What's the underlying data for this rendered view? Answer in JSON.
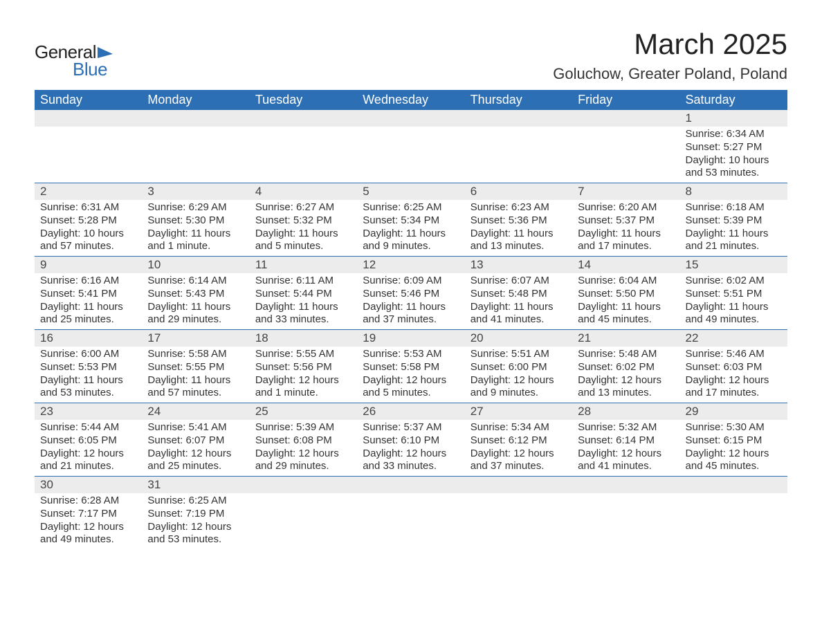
{
  "logo": {
    "text_general": "General",
    "text_blue": "Blue",
    "flag_color": "#2c6fb5"
  },
  "title": "March 2025",
  "subtitle": "Goluchow, Greater Poland, Poland",
  "colors": {
    "header_bg": "#2c6fb5",
    "header_text": "#ffffff",
    "daynum_bg": "#ececec",
    "row_border": "#2c6fb5",
    "text": "#333333",
    "background": "#ffffff"
  },
  "fonts": {
    "title_size": 42,
    "subtitle_size": 22,
    "header_size": 18,
    "daynum_size": 17,
    "body_size": 15
  },
  "layout": {
    "columns": 7,
    "rows": 6
  },
  "day_headers": [
    "Sunday",
    "Monday",
    "Tuesday",
    "Wednesday",
    "Thursday",
    "Friday",
    "Saturday"
  ],
  "labels": {
    "sunrise": "Sunrise:",
    "sunset": "Sunset:",
    "daylight": "Daylight:"
  },
  "weeks": [
    [
      null,
      null,
      null,
      null,
      null,
      null,
      {
        "day": "1",
        "sunrise": "6:34 AM",
        "sunset": "5:27 PM",
        "daylight": "10 hours and 53 minutes."
      }
    ],
    [
      {
        "day": "2",
        "sunrise": "6:31 AM",
        "sunset": "5:28 PM",
        "daylight": "10 hours and 57 minutes."
      },
      {
        "day": "3",
        "sunrise": "6:29 AM",
        "sunset": "5:30 PM",
        "daylight": "11 hours and 1 minute."
      },
      {
        "day": "4",
        "sunrise": "6:27 AM",
        "sunset": "5:32 PM",
        "daylight": "11 hours and 5 minutes."
      },
      {
        "day": "5",
        "sunrise": "6:25 AM",
        "sunset": "5:34 PM",
        "daylight": "11 hours and 9 minutes."
      },
      {
        "day": "6",
        "sunrise": "6:23 AM",
        "sunset": "5:36 PM",
        "daylight": "11 hours and 13 minutes."
      },
      {
        "day": "7",
        "sunrise": "6:20 AM",
        "sunset": "5:37 PM",
        "daylight": "11 hours and 17 minutes."
      },
      {
        "day": "8",
        "sunrise": "6:18 AM",
        "sunset": "5:39 PM",
        "daylight": "11 hours and 21 minutes."
      }
    ],
    [
      {
        "day": "9",
        "sunrise": "6:16 AM",
        "sunset": "5:41 PM",
        "daylight": "11 hours and 25 minutes."
      },
      {
        "day": "10",
        "sunrise": "6:14 AM",
        "sunset": "5:43 PM",
        "daylight": "11 hours and 29 minutes."
      },
      {
        "day": "11",
        "sunrise": "6:11 AM",
        "sunset": "5:44 PM",
        "daylight": "11 hours and 33 minutes."
      },
      {
        "day": "12",
        "sunrise": "6:09 AM",
        "sunset": "5:46 PM",
        "daylight": "11 hours and 37 minutes."
      },
      {
        "day": "13",
        "sunrise": "6:07 AM",
        "sunset": "5:48 PM",
        "daylight": "11 hours and 41 minutes."
      },
      {
        "day": "14",
        "sunrise": "6:04 AM",
        "sunset": "5:50 PM",
        "daylight": "11 hours and 45 minutes."
      },
      {
        "day": "15",
        "sunrise": "6:02 AM",
        "sunset": "5:51 PM",
        "daylight": "11 hours and 49 minutes."
      }
    ],
    [
      {
        "day": "16",
        "sunrise": "6:00 AM",
        "sunset": "5:53 PM",
        "daylight": "11 hours and 53 minutes."
      },
      {
        "day": "17",
        "sunrise": "5:58 AM",
        "sunset": "5:55 PM",
        "daylight": "11 hours and 57 minutes."
      },
      {
        "day": "18",
        "sunrise": "5:55 AM",
        "sunset": "5:56 PM",
        "daylight": "12 hours and 1 minute."
      },
      {
        "day": "19",
        "sunrise": "5:53 AM",
        "sunset": "5:58 PM",
        "daylight": "12 hours and 5 minutes."
      },
      {
        "day": "20",
        "sunrise": "5:51 AM",
        "sunset": "6:00 PM",
        "daylight": "12 hours and 9 minutes."
      },
      {
        "day": "21",
        "sunrise": "5:48 AM",
        "sunset": "6:02 PM",
        "daylight": "12 hours and 13 minutes."
      },
      {
        "day": "22",
        "sunrise": "5:46 AM",
        "sunset": "6:03 PM",
        "daylight": "12 hours and 17 minutes."
      }
    ],
    [
      {
        "day": "23",
        "sunrise": "5:44 AM",
        "sunset": "6:05 PM",
        "daylight": "12 hours and 21 minutes."
      },
      {
        "day": "24",
        "sunrise": "5:41 AM",
        "sunset": "6:07 PM",
        "daylight": "12 hours and 25 minutes."
      },
      {
        "day": "25",
        "sunrise": "5:39 AM",
        "sunset": "6:08 PM",
        "daylight": "12 hours and 29 minutes."
      },
      {
        "day": "26",
        "sunrise": "5:37 AM",
        "sunset": "6:10 PM",
        "daylight": "12 hours and 33 minutes."
      },
      {
        "day": "27",
        "sunrise": "5:34 AM",
        "sunset": "6:12 PM",
        "daylight": "12 hours and 37 minutes."
      },
      {
        "day": "28",
        "sunrise": "5:32 AM",
        "sunset": "6:14 PM",
        "daylight": "12 hours and 41 minutes."
      },
      {
        "day": "29",
        "sunrise": "5:30 AM",
        "sunset": "6:15 PM",
        "daylight": "12 hours and 45 minutes."
      }
    ],
    [
      {
        "day": "30",
        "sunrise": "6:28 AM",
        "sunset": "7:17 PM",
        "daylight": "12 hours and 49 minutes."
      },
      {
        "day": "31",
        "sunrise": "6:25 AM",
        "sunset": "7:19 PM",
        "daylight": "12 hours and 53 minutes."
      },
      null,
      null,
      null,
      null,
      null
    ]
  ]
}
